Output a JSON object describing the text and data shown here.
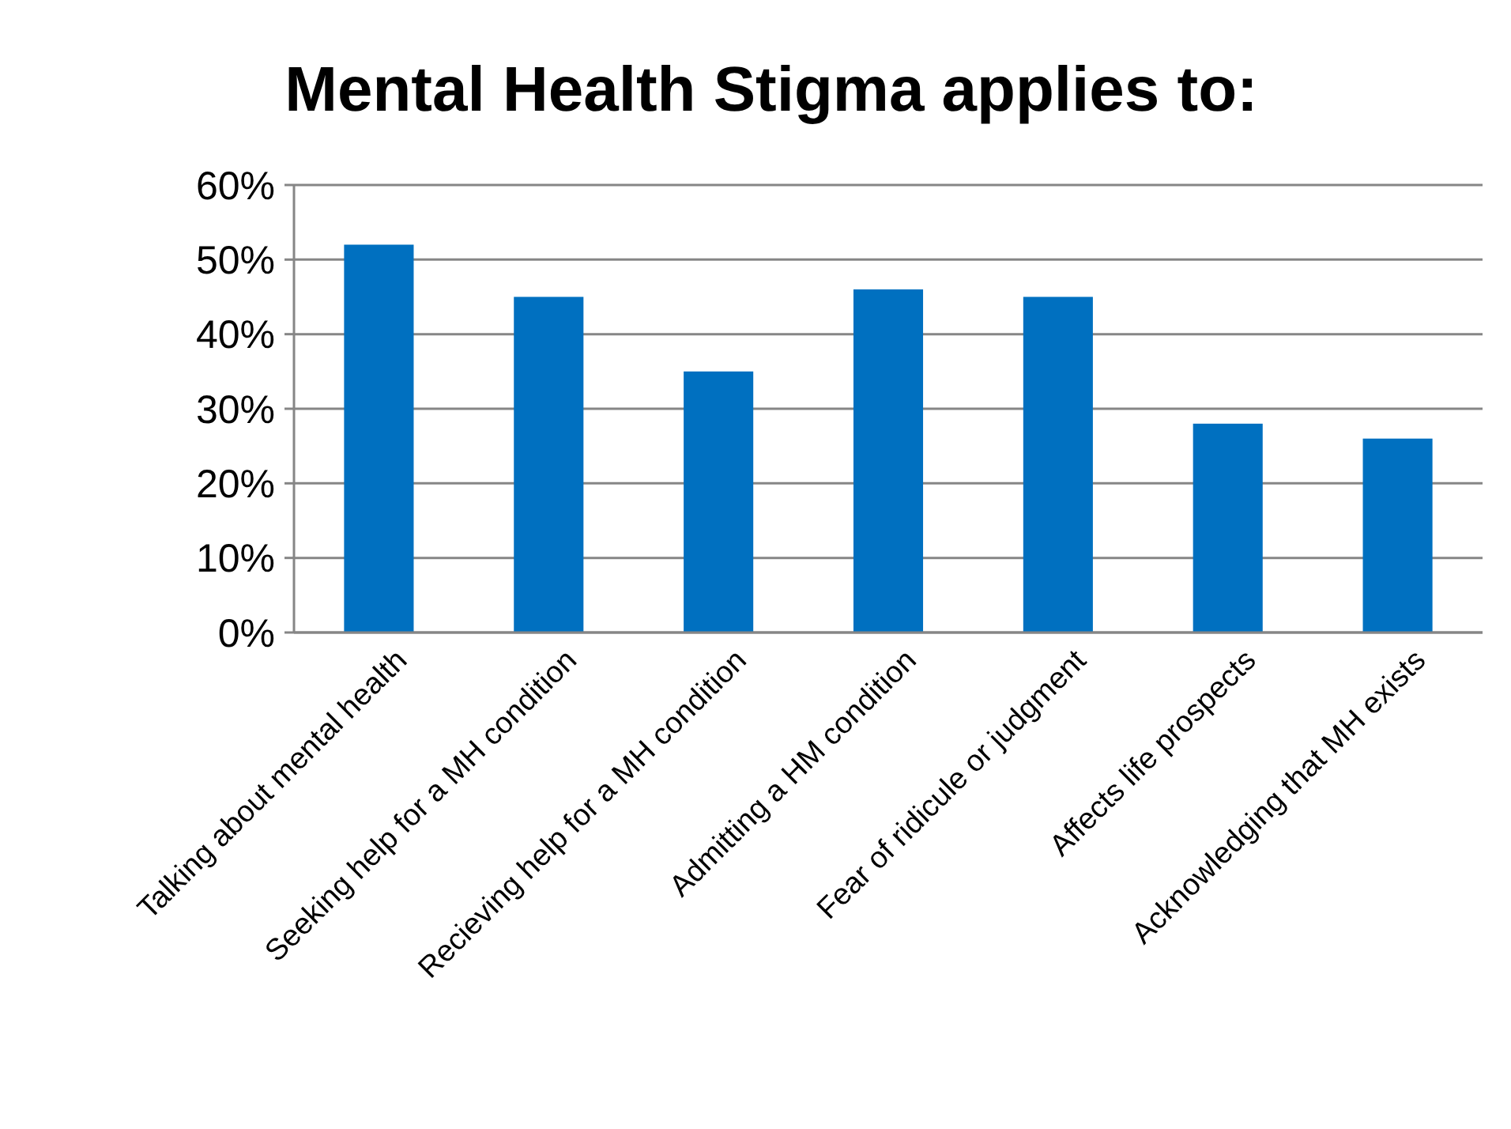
{
  "chart_data": {
    "type": "bar",
    "title": "Mental Health Stigma applies to:",
    "categories": [
      "Talking about mental health",
      "Seeking help for a MH condition",
      "Recieving help for a MH condition",
      "Admitting a HM condition",
      "Fear of ridicule or judgment",
      "Affects life prospects",
      "Acknowledging that MH exists"
    ],
    "values": [
      52,
      45,
      35,
      46,
      45,
      28,
      26
    ],
    "color": "#0070c0",
    "ylim": [
      0,
      60
    ],
    "yticks": [
      {
        "value": 0,
        "label": "0%"
      },
      {
        "value": 10,
        "label": "10%"
      },
      {
        "value": 20,
        "label": "20%"
      },
      {
        "value": 30,
        "label": "30%"
      },
      {
        "value": 40,
        "label": "40%"
      },
      {
        "value": 50,
        "label": "50%"
      },
      {
        "value": 60,
        "label": "60%"
      }
    ],
    "grid": "y"
  }
}
